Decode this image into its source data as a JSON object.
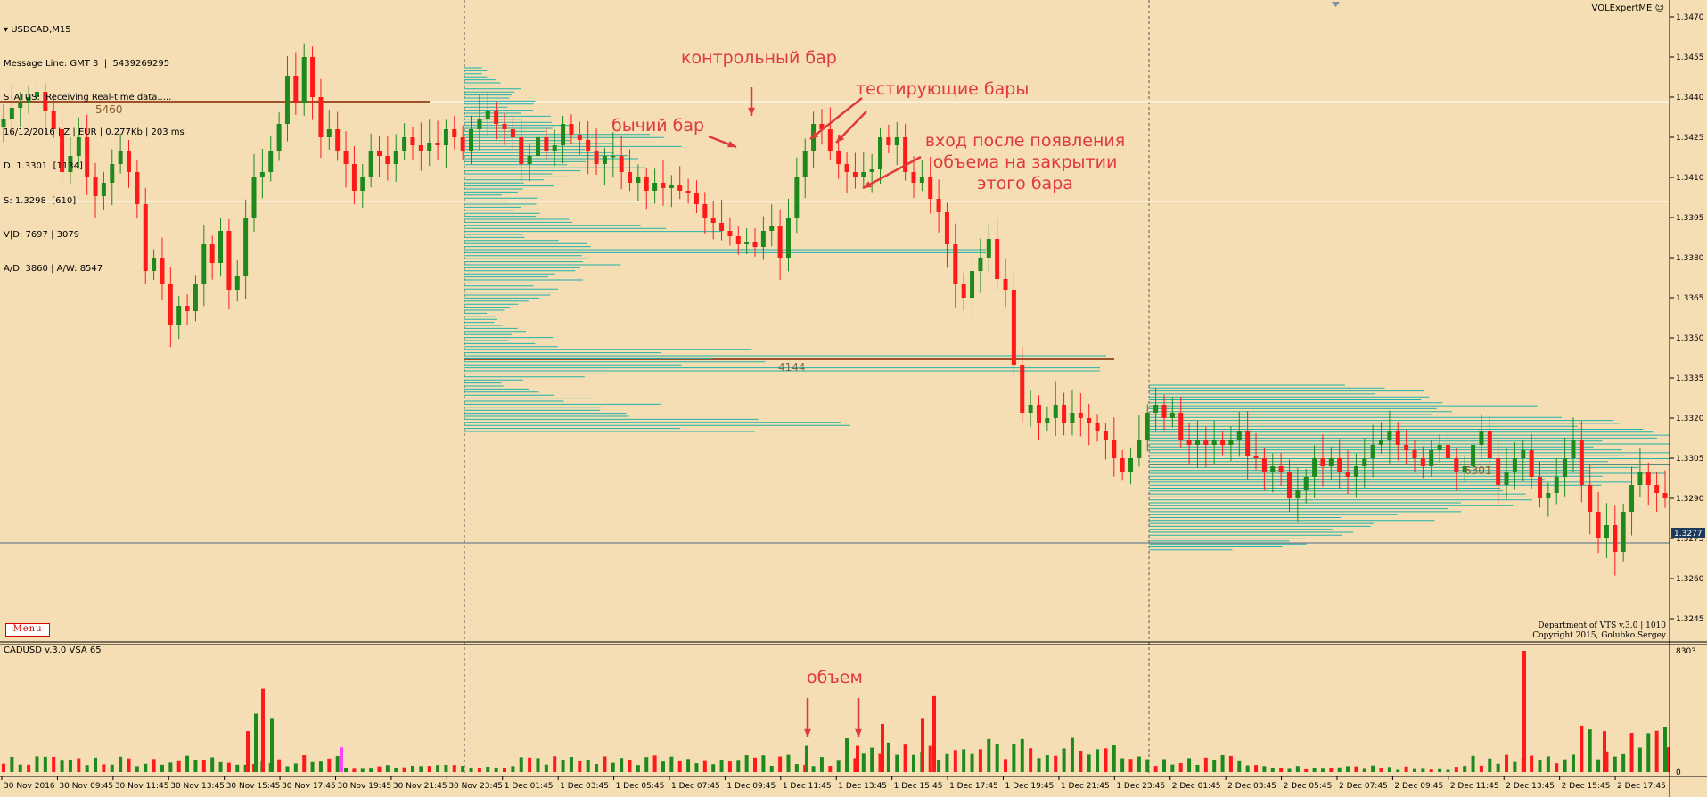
{
  "window": {
    "symbol_title": "USDCAD,M15",
    "top_right_label": "VOLExpertME",
    "info_lines": [
      "Message Line: GMT 3  |  5439269295",
      "STATUS:  Receiving Real-time data.....",
      "16/12/2016 | Z | EUR | 0.277Kb | 203 ms",
      "D: 1.3301  [1134]",
      "S: 1.3298  [610]",
      "V|D: 7697 | 3079",
      "A/D: 3860 | A/W: 8547"
    ],
    "menu_label": "Menu",
    "copyright_lines": [
      "Department of VTS  v.3.0 | 1010",
      "Copyright 2015, Golubko Sergey"
    ]
  },
  "annotations": {
    "control_bar": "контрольный бар",
    "testing_bars": "тестирующие бары",
    "bullish_bar": "бычий бар",
    "entry_line1": "вход после появления",
    "entry_line2": "объема на закрытии",
    "entry_line3": "этого бара",
    "volume": "объем"
  },
  "levels": {
    "left_poc": "5460",
    "mid_poc": "4144",
    "right_poc": "6301"
  },
  "price_axis": {
    "ticks": [
      "1.3470",
      "1.3455",
      "1.3440",
      "1.3425",
      "1.3410",
      "1.3395",
      "1.3380",
      "1.3365",
      "1.3350",
      "1.3335",
      "1.3320",
      "1.3305",
      "1.3290",
      "1.3275",
      "1.3260",
      "1.3245"
    ],
    "current_price": "1.3277"
  },
  "volume_panel": {
    "title": "CADUSD v.3.0 VSA 65",
    "max_label": "8303",
    "zero_label": "0"
  },
  "time_axis": {
    "labels": [
      "30 Nov 2016",
      "30 Nov 09:45",
      "30 Nov 11:45",
      "30 Nov 13:45",
      "30 Nov 15:45",
      "30 Nov 17:45",
      "30 Nov 19:45",
      "30 Nov 21:45",
      "30 Nov 23:45",
      "1 Dec 01:45",
      "1 Dec 03:45",
      "1 Dec 05:45",
      "1 Dec 07:45",
      "1 Dec 09:45",
      "1 Dec 11:45",
      "1 Dec 13:45",
      "1 Dec 15:45",
      "1 Dec 17:45",
      "1 Dec 19:45",
      "1 Dec 21:45",
      "1 Dec 23:45",
      "2 Dec 01:45",
      "2 Dec 03:45",
      "2 Dec 05:45",
      "2 Dec 07:45",
      "2 Dec 09:45",
      "2 Dec 11:45",
      "2 Dec 13:45",
      "2 Dec 15:45",
      "2 Dec 17:45"
    ]
  },
  "colors": {
    "background": "#f5deb3",
    "bull": "#1e8a1e",
    "bear": "#ff1a1a",
    "profile": "#20b2aa",
    "poc_line": "#a0522d",
    "highlight": "#ff40ff"
  },
  "chart_data": {
    "type": "candlestick",
    "symbol": "USDCAD",
    "timeframe": "M15",
    "ylim": [
      1.324,
      1.3478
    ],
    "closes": [
      1.3432,
      1.3436,
      1.3438,
      1.344,
      1.3442,
      1.3435,
      1.3428,
      1.3412,
      1.3418,
      1.3425,
      1.341,
      1.3403,
      1.3408,
      1.3415,
      1.342,
      1.3412,
      1.34,
      1.3375,
      1.338,
      1.337,
      1.3355,
      1.3362,
      1.336,
      1.337,
      1.3385,
      1.3378,
      1.339,
      1.3368,
      1.3373,
      1.3395,
      1.341,
      1.3412,
      1.342,
      1.343,
      1.3448,
      1.3438,
      1.3455,
      1.344,
      1.3425,
      1.3428,
      1.342,
      1.3415,
      1.3405,
      1.341,
      1.342,
      1.3418,
      1.3415,
      1.342,
      1.3425,
      1.3422,
      1.342,
      1.3423,
      1.3422,
      1.3428,
      1.3425,
      1.342,
      1.3428,
      1.3432,
      1.3435,
      1.343,
      1.3428,
      1.3425,
      1.3415,
      1.3418,
      1.3425,
      1.342,
      1.3422,
      1.343,
      1.3426,
      1.3424,
      1.342,
      1.3415,
      1.3418,
      1.3418,
      1.3412,
      1.3408,
      1.341,
      1.3405,
      1.3408,
      1.3406,
      1.3407,
      1.3405,
      1.3404,
      1.34,
      1.3395,
      1.3393,
      1.339,
      1.3388,
      1.3385,
      1.3386,
      1.3384,
      1.339,
      1.3392,
      1.338,
      1.3395,
      1.341,
      1.342,
      1.343,
      1.3428,
      1.342,
      1.3415,
      1.3412,
      1.341,
      1.3412,
      1.3413,
      1.3425,
      1.3422,
      1.3425,
      1.3412,
      1.3408,
      1.341,
      1.3402,
      1.3397,
      1.3385,
      1.337,
      1.3365,
      1.3375,
      1.338,
      1.3387,
      1.3372,
      1.3368,
      1.334,
      1.3322,
      1.3325,
      1.3318,
      1.332,
      1.3325,
      1.3318,
      1.3322,
      1.332,
      1.3318,
      1.3315,
      1.3312,
      1.3305,
      1.33,
      1.3305,
      1.3312,
      1.3322,
      1.3325,
      1.332,
      1.3322,
      1.3312,
      1.331,
      1.3312,
      1.331,
      1.3312,
      1.331,
      1.3312,
      1.3315,
      1.3306,
      1.3305,
      1.33,
      1.3302,
      1.33,
      1.329,
      1.3293,
      1.3298,
      1.3305,
      1.3302,
      1.3305,
      1.33,
      1.3298,
      1.3302,
      1.3305,
      1.331,
      1.3312,
      1.3315,
      1.331,
      1.3308,
      1.3305,
      1.3302,
      1.3308,
      1.331,
      1.3305,
      1.33,
      1.3302,
      1.331,
      1.3315,
      1.3305,
      1.3295,
      1.33,
      1.3305,
      1.3308,
      1.3298,
      1.329,
      1.3292,
      1.3298,
      1.3305,
      1.3312,
      1.3295,
      1.3285,
      1.3275,
      1.328,
      1.327,
      1.3285,
      1.3295,
      1.33,
      1.3295,
      1.3292,
      1.329
    ]
  }
}
